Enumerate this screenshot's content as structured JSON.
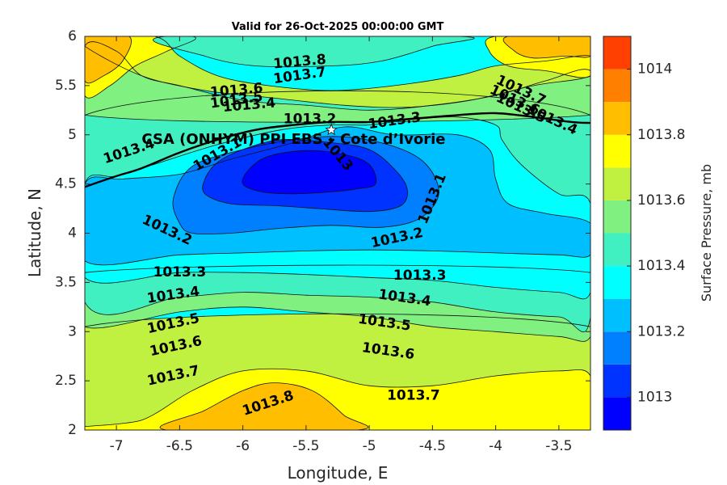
{
  "chart_data": {
    "type": "contour",
    "title": "Valid for 26-Oct-2025 00:00:00 GMT",
    "xlabel": "Longitude, E",
    "ylabel": "Latitude, N",
    "colorbar_label": "Surface Pressure, mb",
    "xlim": [
      -7.25,
      -3.25
    ],
    "ylim": [
      2,
      6
    ],
    "x_ticks": [
      -7,
      -6.5,
      -6,
      -5.5,
      -5,
      -4.5,
      -4,
      -3.5
    ],
    "x_tick_labels": [
      "-7",
      "-6.5",
      "-6",
      "-5.5",
      "-5",
      "-4.5",
      "-4",
      "-3.5"
    ],
    "y_ticks": [
      2,
      2.5,
      3,
      3.5,
      4,
      4.5,
      5,
      5.5,
      6
    ],
    "y_tick_labels": [
      "2",
      "2.5",
      "3",
      "3.5",
      "4",
      "4.5",
      "5",
      "5.5",
      "6"
    ],
    "colorbar_range": [
      1012.9,
      1014.1
    ],
    "colorbar_ticks": [
      1013,
      1013.2,
      1013.4,
      1013.6,
      1013.8,
      1014
    ],
    "colorbar_tick_labels": [
      "1013",
      "1013.2",
      "1013.4",
      "1013.6",
      "1013.8",
      "1014"
    ],
    "levels": [
      1012.9,
      1013.0,
      1013.1,
      1013.2,
      1013.3,
      1013.4,
      1013.5,
      1013.6,
      1013.7,
      1013.8,
      1013.9,
      1014.0,
      1014.1
    ],
    "colors": [
      "#0000ff",
      "#0033ff",
      "#0080ff",
      "#00bfff",
      "#00ffff",
      "#40f0c0",
      "#80f080",
      "#c0f040",
      "#ffff00",
      "#ffbf00",
      "#ff8000",
      "#ff4000"
    ],
    "field_regions": [
      {
        "level_index": 7,
        "points": [
          [
            -7.25,
            2.0
          ],
          [
            -3.25,
            2.0
          ],
          [
            -3.25,
            3.05
          ],
          [
            -7.25,
            3.05
          ]
        ]
      },
      {
        "level_index": 8,
        "points": [
          [
            -7.25,
            2.0
          ],
          [
            -6.8,
            2.1
          ],
          [
            -6.4,
            2.4
          ],
          [
            -6.0,
            2.6
          ],
          [
            -5.5,
            2.6
          ],
          [
            -5.0,
            2.45
          ],
          [
            -4.5,
            2.45
          ],
          [
            -4.0,
            2.55
          ],
          [
            -3.5,
            2.6
          ],
          [
            -3.25,
            2.55
          ],
          [
            -3.25,
            2.0
          ]
        ]
      },
      {
        "level_index": 9,
        "points": [
          [
            -6.6,
            2.0
          ],
          [
            -6.3,
            2.2
          ],
          [
            -6.0,
            2.4
          ],
          [
            -5.75,
            2.48
          ],
          [
            -5.45,
            2.4
          ],
          [
            -5.2,
            2.15
          ],
          [
            -5.1,
            2.0
          ]
        ]
      },
      {
        "level_index": 6,
        "points": [
          [
            -7.25,
            3.05
          ],
          [
            -6.5,
            3.2
          ],
          [
            -6.0,
            3.25
          ],
          [
            -5.5,
            3.2
          ],
          [
            -5.0,
            3.15
          ],
          [
            -4.5,
            3.05
          ],
          [
            -4.0,
            3.0
          ],
          [
            -3.5,
            2.95
          ],
          [
            -3.25,
            2.95
          ],
          [
            -3.25,
            3.6
          ],
          [
            -7.25,
            3.6
          ]
        ]
      },
      {
        "level_index": 5,
        "points": [
          [
            -7.25,
            3.3
          ],
          [
            -6.5,
            3.35
          ],
          [
            -6.0,
            3.4
          ],
          [
            -5.5,
            3.37
          ],
          [
            -5.0,
            3.35
          ],
          [
            -4.5,
            3.3
          ],
          [
            -4.0,
            3.2
          ],
          [
            -3.5,
            3.15
          ],
          [
            -3.25,
            3.15
          ],
          [
            -3.25,
            5.2
          ],
          [
            -7.25,
            5.2
          ]
        ]
      },
      {
        "level_index": 4,
        "points": [
          [
            -7.25,
            3.55
          ],
          [
            -6.5,
            3.6
          ],
          [
            -6.0,
            3.6
          ],
          [
            -5.5,
            3.58
          ],
          [
            -5.0,
            3.55
          ],
          [
            -4.5,
            3.52
          ],
          [
            -4.0,
            3.45
          ],
          [
            -3.5,
            3.4
          ],
          [
            -3.25,
            3.4
          ],
          [
            -3.25,
            4.3
          ],
          [
            -3.5,
            4.4
          ],
          [
            -3.8,
            4.7
          ],
          [
            -3.95,
            4.95
          ],
          [
            -4.0,
            5.1
          ],
          [
            -4.3,
            5.18
          ],
          [
            -4.7,
            5.15
          ],
          [
            -5.0,
            5.1
          ],
          [
            -5.3,
            5.1
          ],
          [
            -5.7,
            5.05
          ],
          [
            -6.2,
            4.9
          ],
          [
            -6.7,
            4.7
          ],
          [
            -7.0,
            4.58
          ],
          [
            -7.25,
            4.5
          ]
        ]
      },
      {
        "level_index": 3,
        "points": [
          [
            -7.25,
            3.72
          ],
          [
            -6.5,
            3.78
          ],
          [
            -6.0,
            3.8
          ],
          [
            -5.5,
            3.82
          ],
          [
            -5.0,
            3.83
          ],
          [
            -4.5,
            3.82
          ],
          [
            -4.0,
            3.8
          ],
          [
            -3.5,
            3.78
          ],
          [
            -3.25,
            3.78
          ],
          [
            -3.25,
            4.1
          ],
          [
            -3.6,
            4.2
          ],
          [
            -3.9,
            4.3
          ],
          [
            -4.0,
            4.55
          ],
          [
            -4.05,
            4.85
          ],
          [
            -4.3,
            5.0
          ],
          [
            -4.8,
            5.0
          ],
          [
            -5.2,
            5.08
          ],
          [
            -5.6,
            4.92
          ],
          [
            -6.1,
            4.75
          ],
          [
            -6.5,
            4.6
          ],
          [
            -6.95,
            4.55
          ],
          [
            -7.25,
            4.5
          ]
        ]
      },
      {
        "level_index": 2,
        "points": [
          [
            -6.55,
            4.35
          ],
          [
            -6.5,
            4.1
          ],
          [
            -6.4,
            4.0
          ],
          [
            -6.1,
            4.0
          ],
          [
            -5.7,
            4.05
          ],
          [
            -5.3,
            4.08
          ],
          [
            -4.9,
            4.06
          ],
          [
            -4.6,
            4.15
          ],
          [
            -4.45,
            4.4
          ],
          [
            -4.55,
            4.7
          ],
          [
            -4.8,
            4.88
          ],
          [
            -5.2,
            4.98
          ],
          [
            -5.6,
            4.95
          ],
          [
            -6.0,
            4.85
          ],
          [
            -6.4,
            4.68
          ]
        ]
      },
      {
        "level_index": 1,
        "points": [
          [
            -6.3,
            4.55
          ],
          [
            -6.3,
            4.4
          ],
          [
            -6.1,
            4.3
          ],
          [
            -5.75,
            4.28
          ],
          [
            -5.4,
            4.25
          ],
          [
            -5.0,
            4.22
          ],
          [
            -4.75,
            4.28
          ],
          [
            -4.7,
            4.45
          ],
          [
            -4.8,
            4.65
          ],
          [
            -5.0,
            4.85
          ],
          [
            -5.3,
            4.92
          ],
          [
            -5.7,
            4.95
          ],
          [
            -6.0,
            4.85
          ],
          [
            -6.2,
            4.72
          ]
        ]
      },
      {
        "level_index": 0,
        "points": [
          [
            -6.0,
            4.5
          ],
          [
            -5.85,
            4.42
          ],
          [
            -5.6,
            4.4
          ],
          [
            -5.3,
            4.42
          ],
          [
            -5.1,
            4.45
          ],
          [
            -4.95,
            4.5
          ],
          [
            -5.0,
            4.7
          ],
          [
            -5.2,
            4.8
          ],
          [
            -5.5,
            4.84
          ],
          [
            -5.8,
            4.78
          ],
          [
            -5.95,
            4.65
          ]
        ]
      },
      {
        "level_index": 6,
        "points": [
          [
            -7.25,
            5.9
          ],
          [
            -7.0,
            5.85
          ],
          [
            -6.8,
            5.6
          ],
          [
            -6.5,
            5.5
          ],
          [
            -6.0,
            5.35
          ],
          [
            -5.5,
            5.3
          ],
          [
            -5.0,
            5.25
          ],
          [
            -4.5,
            5.3
          ],
          [
            -4.0,
            5.4
          ],
          [
            -3.6,
            5.55
          ],
          [
            -3.25,
            5.65
          ],
          [
            -3.25,
            5.2
          ],
          [
            -7.25,
            5.2
          ]
        ]
      },
      {
        "level_index": 7,
        "points": [
          [
            -7.25,
            6.0
          ],
          [
            -6.7,
            6.0
          ],
          [
            -6.5,
            5.8
          ],
          [
            -6.2,
            5.6
          ],
          [
            -5.8,
            5.5
          ],
          [
            -5.3,
            5.45
          ],
          [
            -4.8,
            5.5
          ],
          [
            -4.3,
            5.6
          ],
          [
            -4.0,
            5.7
          ],
          [
            -3.6,
            5.75
          ],
          [
            -3.25,
            5.8
          ],
          [
            -3.25,
            5.6
          ],
          [
            -3.7,
            5.5
          ],
          [
            -4.2,
            5.35
          ],
          [
            -4.7,
            5.28
          ],
          [
            -5.2,
            5.3
          ],
          [
            -5.8,
            5.38
          ],
          [
            -6.3,
            5.45
          ],
          [
            -6.8,
            5.6
          ],
          [
            -7.25,
            5.9
          ]
        ]
      },
      {
        "level_index": 8,
        "points": [
          [
            -7.25,
            6.0
          ],
          [
            -7.25,
            5.4
          ],
          [
            -7.05,
            5.5
          ],
          [
            -6.85,
            5.7
          ],
          [
            -6.6,
            5.85
          ],
          [
            -6.4,
            6.0
          ]
        ]
      },
      {
        "level_index": 8,
        "points": [
          [
            -4.0,
            6.0
          ],
          [
            -4.05,
            5.85
          ],
          [
            -3.9,
            5.7
          ],
          [
            -3.6,
            5.65
          ],
          [
            -3.25,
            5.6
          ],
          [
            -3.25,
            6.0
          ]
        ]
      },
      {
        "level_index": 9,
        "points": [
          [
            -7.25,
            6.0
          ],
          [
            -7.25,
            5.55
          ],
          [
            -7.1,
            5.6
          ],
          [
            -6.95,
            5.75
          ],
          [
            -6.9,
            6.0
          ]
        ]
      },
      {
        "level_index": 9,
        "points": [
          [
            -3.9,
            6.0
          ],
          [
            -3.85,
            5.85
          ],
          [
            -3.7,
            5.78
          ],
          [
            -3.45,
            5.8
          ],
          [
            -3.25,
            5.8
          ],
          [
            -3.25,
            6.0
          ]
        ]
      },
      {
        "level_index": 5,
        "points": [
          [
            -6.6,
            6.0
          ],
          [
            -6.3,
            5.8
          ],
          [
            -5.9,
            5.7
          ],
          [
            -5.3,
            5.7
          ],
          [
            -4.9,
            5.75
          ],
          [
            -4.5,
            5.9
          ],
          [
            -4.3,
            6.0
          ]
        ]
      }
    ],
    "contour_labels": [
      {
        "text": "1013.8",
        "x": -5.8,
        "y": 2.27,
        "angle": -18
      },
      {
        "text": "1013.7",
        "x": -6.55,
        "y": 2.55,
        "angle": -12
      },
      {
        "text": "1013.7",
        "x": -4.65,
        "y": 2.35,
        "angle": 0
      },
      {
        "text": "1013.6",
        "x": -6.53,
        "y": 2.85,
        "angle": -12
      },
      {
        "text": "1013.6",
        "x": -4.85,
        "y": 2.8,
        "angle": 8
      },
      {
        "text": "1013.5",
        "x": -6.55,
        "y": 3.08,
        "angle": -12
      },
      {
        "text": "1013.5",
        "x": -4.88,
        "y": 3.09,
        "angle": 8
      },
      {
        "text": "1013.4",
        "x": -6.55,
        "y": 3.37,
        "angle": -8
      },
      {
        "text": "1013.4",
        "x": -4.72,
        "y": 3.34,
        "angle": 8
      },
      {
        "text": "1013.3",
        "x": -6.5,
        "y": 3.6,
        "angle": 0
      },
      {
        "text": "1013.3",
        "x": -4.6,
        "y": 3.57,
        "angle": 0
      },
      {
        "text": "1013.2",
        "x": -6.6,
        "y": 4.03,
        "angle": 25
      },
      {
        "text": "1013.2",
        "x": -4.78,
        "y": 3.95,
        "angle": -12
      },
      {
        "text": "1013.1",
        "x": -4.5,
        "y": 4.35,
        "angle": -68
      },
      {
        "text": "1013",
        "x": -5.25,
        "y": 4.8,
        "angle": 50
      },
      {
        "text": "1013.1",
        "x": -6.2,
        "y": 4.8,
        "angle": -30
      },
      {
        "text": "1013.4",
        "x": -6.9,
        "y": 4.83,
        "angle": -18
      },
      {
        "text": "1013.2",
        "x": -5.47,
        "y": 5.16,
        "angle": 0
      },
      {
        "text": "1013.3",
        "x": -4.8,
        "y": 5.14,
        "angle": -8
      },
      {
        "text": "1013.4",
        "x": -5.95,
        "y": 5.3,
        "angle": -5
      },
      {
        "text": "1013.5",
        "x": -6.05,
        "y": 5.35,
        "angle": -8
      },
      {
        "text": "1013.6",
        "x": -6.05,
        "y": 5.45,
        "angle": -5
      },
      {
        "text": "1013.7",
        "x": -5.55,
        "y": 5.6,
        "angle": -8
      },
      {
        "text": "1013.8",
        "x": -5.55,
        "y": 5.74,
        "angle": -5
      },
      {
        "text": "1013.7",
        "x": -3.8,
        "y": 5.45,
        "angle": 25
      },
      {
        "text": "1013.6",
        "x": -3.85,
        "y": 5.35,
        "angle": 25
      },
      {
        "text": "1013.5",
        "x": -3.8,
        "y": 5.27,
        "angle": 25
      },
      {
        "text": "1013.4",
        "x": -3.55,
        "y": 5.15,
        "angle": 25
      }
    ],
    "station": {
      "label": "CSA (ONHYM) PPI EBS  – Cote d’Ivorie",
      "x": -5.3,
      "y": 5.05,
      "label_x": -6.8,
      "label_y": 4.95
    },
    "coastline": [
      [
        -7.25,
        4.47
      ],
      [
        -7.0,
        4.58
      ],
      [
        -6.8,
        4.66
      ],
      [
        -6.5,
        4.82
      ],
      [
        -6.2,
        4.95
      ],
      [
        -5.9,
        5.05
      ],
      [
        -5.6,
        5.1
      ],
      [
        -5.3,
        5.13
      ],
      [
        -5.0,
        5.13
      ],
      [
        -4.6,
        5.17
      ],
      [
        -4.3,
        5.2
      ],
      [
        -4.0,
        5.22
      ],
      [
        -3.7,
        5.18
      ],
      [
        -3.4,
        5.13
      ],
      [
        -3.25,
        5.12
      ]
    ]
  }
}
